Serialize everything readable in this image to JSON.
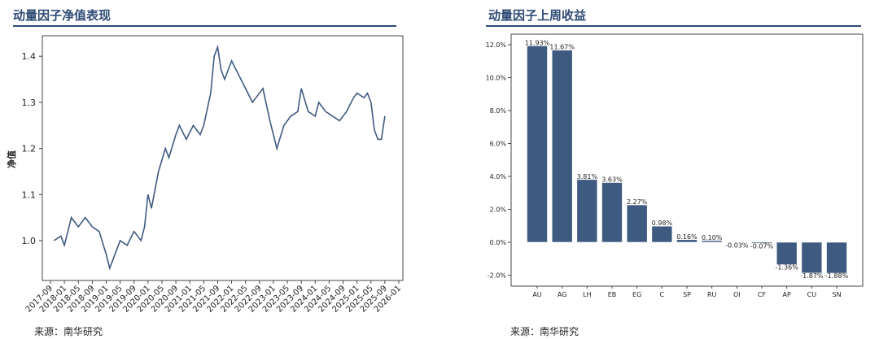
{
  "left": {
    "title": "动量因子净值表现",
    "source": "来源：南华研究"
  },
  "right": {
    "title": "动量因子上周收益",
    "source": "来源：南华研究"
  },
  "chart_data": [
    {
      "type": "line",
      "ylabel": "净值",
      "ylim": [
        0.92,
        1.45
      ],
      "y_ticks": [
        1.0,
        1.1,
        1.2,
        1.3,
        1.4
      ],
      "x_ticks": [
        "2017-09",
        "2018-01",
        "2018-05",
        "2018-09",
        "2019-01",
        "2019-05",
        "2019-09",
        "2020-01",
        "2020-05",
        "2020-09",
        "2021-01",
        "2021-05",
        "2021-09",
        "2022-01",
        "2022-05",
        "2022-09",
        "2023-01",
        "2023-05",
        "2023-09",
        "2024-01",
        "2024-05",
        "2024-09",
        "2025-01",
        "2025-05",
        "2025-09",
        "2026-01"
      ],
      "color": "#3f5a80",
      "points": [
        [
          "2017-10",
          1.0
        ],
        [
          "2017-12",
          1.01
        ],
        [
          "2018-01",
          0.99
        ],
        [
          "2018-03",
          1.05
        ],
        [
          "2018-05",
          1.03
        ],
        [
          "2018-07",
          1.05
        ],
        [
          "2018-09",
          1.03
        ],
        [
          "2018-11",
          1.02
        ],
        [
          "2019-01",
          0.97
        ],
        [
          "2019-02",
          0.94
        ],
        [
          "2019-04",
          0.98
        ],
        [
          "2019-05",
          1.0
        ],
        [
          "2019-07",
          0.99
        ],
        [
          "2019-09",
          1.02
        ],
        [
          "2019-11",
          1.0
        ],
        [
          "2019-12",
          1.03
        ],
        [
          "2020-01",
          1.1
        ],
        [
          "2020-02",
          1.07
        ],
        [
          "2020-04",
          1.15
        ],
        [
          "2020-06",
          1.2
        ],
        [
          "2020-07",
          1.18
        ],
        [
          "2020-09",
          1.23
        ],
        [
          "2020-10",
          1.25
        ],
        [
          "2020-12",
          1.22
        ],
        [
          "2021-02",
          1.25
        ],
        [
          "2021-04",
          1.23
        ],
        [
          "2021-05",
          1.25
        ],
        [
          "2021-07",
          1.32
        ],
        [
          "2021-08",
          1.4
        ],
        [
          "2021-09",
          1.42
        ],
        [
          "2021-10",
          1.37
        ],
        [
          "2021-11",
          1.35
        ],
        [
          "2022-01",
          1.39
        ],
        [
          "2022-03",
          1.36
        ],
        [
          "2022-05",
          1.33
        ],
        [
          "2022-07",
          1.3
        ],
        [
          "2022-08",
          1.31
        ],
        [
          "2022-10",
          1.33
        ],
        [
          "2022-12",
          1.26
        ],
        [
          "2023-02",
          1.2
        ],
        [
          "2023-04",
          1.25
        ],
        [
          "2023-06",
          1.27
        ],
        [
          "2023-08",
          1.28
        ],
        [
          "2023-09",
          1.33
        ],
        [
          "2023-11",
          1.28
        ],
        [
          "2024-01",
          1.27
        ],
        [
          "2024-02",
          1.3
        ],
        [
          "2024-04",
          1.28
        ],
        [
          "2024-06",
          1.27
        ],
        [
          "2024-08",
          1.26
        ],
        [
          "2024-10",
          1.28
        ],
        [
          "2024-12",
          1.31
        ],
        [
          "2025-01",
          1.32
        ],
        [
          "2025-03",
          1.31
        ],
        [
          "2025-04",
          1.32
        ],
        [
          "2025-05",
          1.3
        ],
        [
          "2025-06",
          1.24
        ],
        [
          "2025-07",
          1.22
        ],
        [
          "2025-08",
          1.22
        ],
        [
          "2025-09",
          1.27
        ]
      ]
    },
    {
      "type": "bar",
      "ylim": [
        -2.5,
        12.7
      ],
      "y_ticks": [
        "-2.0%",
        "0.0%",
        "2.0%",
        "4.0%",
        "6.0%",
        "8.0%",
        "10.0%",
        "12.0%"
      ],
      "color": "#3f5a80",
      "categories": [
        "AU",
        "AG",
        "LH",
        "EB",
        "EG",
        "C",
        "SP",
        "RU",
        "OI",
        "CF",
        "AP",
        "CU",
        "SN"
      ],
      "values": [
        11.93,
        11.67,
        3.81,
        3.63,
        2.27,
        0.98,
        0.16,
        0.1,
        -0.03,
        -0.07,
        -1.36,
        -1.87,
        -1.88
      ],
      "labels": [
        "11.93%",
        "11.67%",
        "3.81%",
        "3.63%",
        "2.27%",
        "0.98%",
        "0.16%",
        "0.10%",
        "-0.03%",
        "-0.07%",
        "-1.36%",
        "-1.87%",
        "-1.88%"
      ]
    }
  ]
}
